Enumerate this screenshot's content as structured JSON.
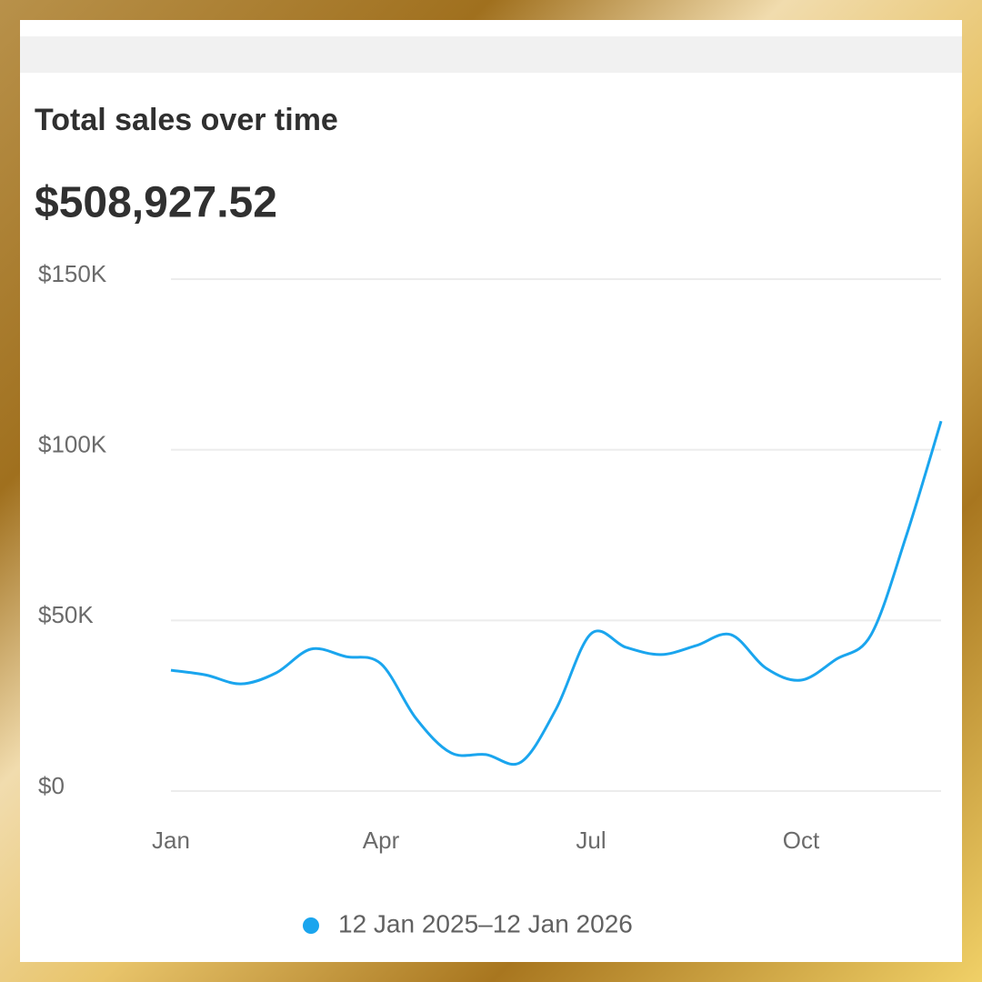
{
  "title": "Total sales over time",
  "total": "$508,927.52",
  "chart_data": {
    "type": "line",
    "categories": [
      "Jan",
      null,
      null,
      null,
      null,
      null,
      "Apr",
      null,
      null,
      null,
      null,
      null,
      "Jul",
      null,
      null,
      null,
      null,
      null,
      "Oct",
      null,
      null,
      null,
      null
    ],
    "series": [
      {
        "name": "12 Jan 2025–12 Jan 2026",
        "color": "#1aa5ee",
        "values": [
          35400,
          34000,
          31400,
          34600,
          41600,
          39400,
          37300,
          21300,
          11200,
          10700,
          8500,
          24000,
          46100,
          42100,
          40000,
          42600,
          45800,
          36000,
          32500,
          38600,
          45800,
          74600,
          108400
        ]
      }
    ],
    "ylim": [
      0,
      150000
    ],
    "yticks": [
      {
        "value": 0,
        "label": "$0"
      },
      {
        "value": 50000,
        "label": "$50K"
      },
      {
        "value": 100000,
        "label": "$100K"
      },
      {
        "value": 150000,
        "label": "$150K"
      }
    ],
    "grid": true
  }
}
